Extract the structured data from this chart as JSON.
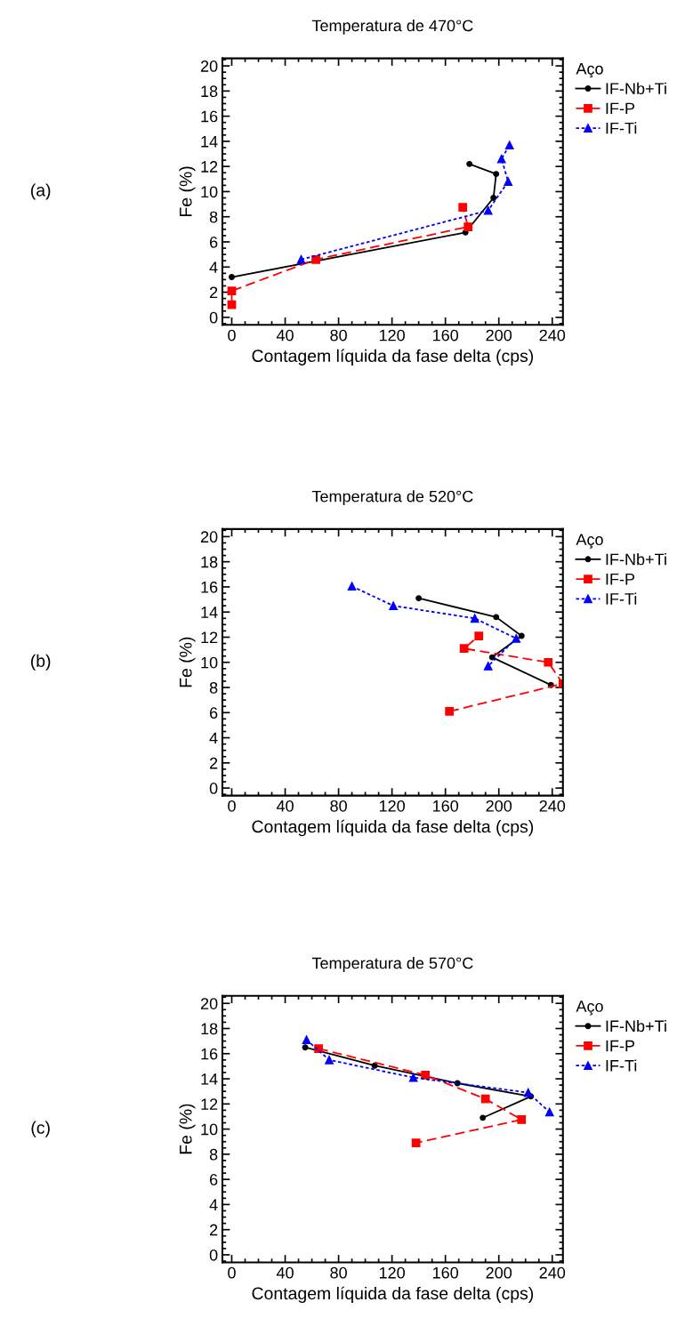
{
  "chart_data": [
    {
      "type": "line",
      "title": "Temperatura de 470°C",
      "xlabel": "Contagem líquida da fase delta (cps)",
      "ylabel": "Fe (%)",
      "legend_title": "Aço",
      "annotations": [
        "(a)"
      ],
      "xlim": [
        -7,
        248
      ],
      "ylim": [
        -0.6,
        20.6
      ],
      "xticks": [
        0,
        40,
        80,
        120,
        160,
        200,
        240
      ],
      "yticks": [
        0,
        2,
        4,
        6,
        8,
        10,
        12,
        14,
        16,
        18,
        20
      ],
      "grid": false,
      "legend": "right",
      "series": [
        {
          "name": "IF-Nb+Ti",
          "color": "#000000",
          "marker": "circle",
          "line_style": "solid",
          "x": [
            0,
            175,
            196,
            198,
            178
          ],
          "values": [
            3.2,
            6.75,
            9.5,
            11.4,
            12.2
          ]
        },
        {
          "name": "IF-P",
          "color": "#ff0000",
          "marker": "square",
          "line_style": "dashed",
          "x": [
            0,
            0,
            63,
            177,
            173
          ],
          "values": [
            1.0,
            2.1,
            4.6,
            7.2,
            8.75
          ]
        },
        {
          "name": "IF-Ti",
          "color": "#0000ff",
          "marker": "triangle",
          "line_style": "dotted",
          "x": [
            52,
            192,
            207,
            202,
            208
          ],
          "values": [
            4.6,
            8.5,
            10.8,
            12.6,
            13.7
          ]
        }
      ]
    },
    {
      "type": "line",
      "title": "Temperatura de 520°C",
      "xlabel": "Contagem líquida da fase delta (cps)",
      "ylabel": "Fe (%)",
      "legend_title": "Aço",
      "annotations": [
        "(b)"
      ],
      "xlim": [
        -7,
        248
      ],
      "ylim": [
        -0.6,
        20.6
      ],
      "xticks": [
        0,
        40,
        80,
        120,
        160,
        200,
        240
      ],
      "yticks": [
        0,
        2,
        4,
        6,
        8,
        10,
        12,
        14,
        16,
        18,
        20
      ],
      "grid": false,
      "legend": "right",
      "series": [
        {
          "name": "IF-Nb+Ti",
          "color": "#000000",
          "marker": "circle",
          "line_style": "solid",
          "x": [
            140,
            198,
            217,
            195,
            239
          ],
          "values": [
            15.1,
            13.6,
            12.1,
            10.4,
            8.2
          ]
        },
        {
          "name": "IF-P",
          "color": "#ff0000",
          "marker": "square",
          "line_style": "dashed",
          "x": [
            163,
            248,
            237,
            174,
            185
          ],
          "values": [
            6.1,
            8.3,
            10.0,
            11.1,
            12.1
          ]
        },
        {
          "name": "IF-Ti",
          "color": "#0000ff",
          "marker": "triangle",
          "line_style": "dotted",
          "x": [
            90,
            121,
            182,
            213,
            192
          ],
          "values": [
            16.05,
            14.5,
            13.5,
            11.9,
            9.7
          ]
        }
      ]
    },
    {
      "type": "line",
      "title": "Temperatura de 570°C",
      "xlabel": "Contagem líquida da fase delta (cps)",
      "ylabel": "Fe (%)",
      "legend_title": "Aço",
      "annotations": [
        "(c)"
      ],
      "xlim": [
        -7,
        248
      ],
      "ylim": [
        -0.6,
        20.6
      ],
      "xticks": [
        0,
        40,
        80,
        120,
        160,
        200,
        240
      ],
      "yticks": [
        0,
        2,
        4,
        6,
        8,
        10,
        12,
        14,
        16,
        18,
        20
      ],
      "grid": false,
      "legend": "right",
      "series": [
        {
          "name": "IF-Nb+Ti",
          "color": "#000000",
          "marker": "circle",
          "line_style": "solid",
          "x": [
            55,
            107,
            169,
            224,
            188
          ],
          "values": [
            16.5,
            15.05,
            13.65,
            12.6,
            10.9
          ]
        },
        {
          "name": "IF-P",
          "color": "#ff0000",
          "marker": "square",
          "line_style": "dashed",
          "x": [
            65,
            145,
            190,
            217,
            138
          ],
          "values": [
            16.4,
            14.3,
            12.4,
            10.75,
            8.9
          ]
        },
        {
          "name": "IF-Ti",
          "color": "#0000ff",
          "marker": "triangle",
          "line_style": "dotted",
          "x": [
            56,
            73,
            136,
            222,
            238
          ],
          "values": [
            17.1,
            15.5,
            14.1,
            12.9,
            11.35
          ]
        }
      ]
    }
  ]
}
